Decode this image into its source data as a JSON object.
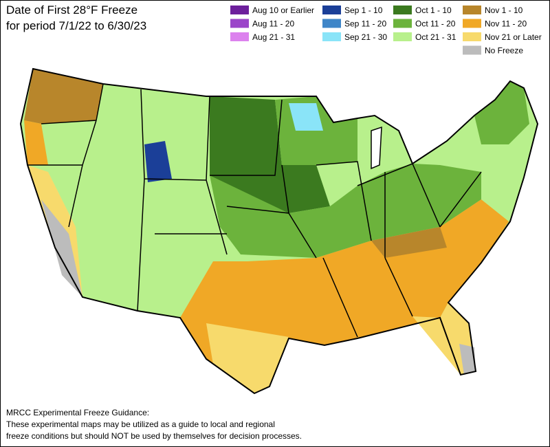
{
  "header": {
    "title_line1": "Date of First 28°F Freeze",
    "title_line2": "for period 7/1/22 to 6/30/23"
  },
  "legend": {
    "items": [
      {
        "label": "Aug 10 or Earlier",
        "color": "#6d1f9c"
      },
      {
        "label": "Aug 11 - 20",
        "color": "#9b45c9"
      },
      {
        "label": "Aug 21 - 31",
        "color": "#dc82ee"
      },
      {
        "label": "Sep 1 - 10",
        "color": "#1b3f98"
      },
      {
        "label": "Sep 11 - 20",
        "color": "#3f86c8"
      },
      {
        "label": "Sep 21 - 30",
        "color": "#8ae4f8"
      },
      {
        "label": "Oct 1 - 10",
        "color": "#3b7a1f"
      },
      {
        "label": "Oct 11 - 20",
        "color": "#6cb33c"
      },
      {
        "label": "Oct 21 - 31",
        "color": "#b8f08c"
      },
      {
        "label": "Nov 1 - 10",
        "color": "#b8862b"
      },
      {
        "label": "Nov 11 - 20",
        "color": "#f0a826"
      },
      {
        "label": "Nov 21 or Later",
        "color": "#f7da6c"
      },
      {
        "label": "No Freeze",
        "color": "#bcbcbc"
      }
    ]
  },
  "footer": {
    "line1": "MRCC Experimental Freeze Guidance:",
    "line2": "These experimental maps may be utilized as a guide to local and regional",
    "line3": "freeze conditions but should NOT be used by themselves for decision processes."
  }
}
